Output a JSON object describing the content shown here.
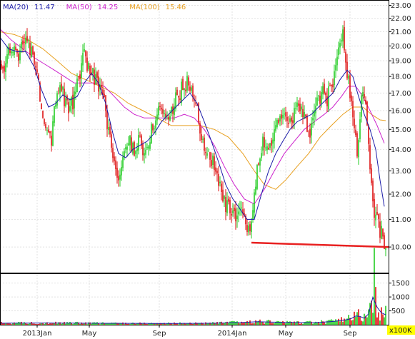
{
  "chart_data": {
    "type": "candlestick",
    "legend": [
      {
        "label": "MA(20)",
        "value": "11.47",
        "color": "#1a1aa8"
      },
      {
        "label": "MA(50)",
        "value": "14.25",
        "color": "#cc22cc"
      },
      {
        "label": "MA(100)",
        "value": "15.46",
        "color": "#e8a020"
      }
    ],
    "price_axis": {
      "scale": "log",
      "range": [
        9.2,
        23.2
      ],
      "ticks": [
        10,
        11,
        12,
        13,
        14,
        15,
        16,
        17,
        18,
        19,
        20,
        21,
        22,
        23
      ],
      "tick_labels": [
        "10.00",
        "11.00",
        "12.00",
        "13.00",
        "14.00",
        "15.00",
        "16.00",
        "17.00",
        "18.00",
        "19.00",
        "20.00",
        "21.00",
        "22.00",
        "23.00"
      ]
    },
    "volume_axis": {
      "range": [
        0,
        1800
      ],
      "ticks": [
        500,
        1000,
        1500
      ],
      "tick_labels": [
        "500",
        "1000",
        "1500"
      ],
      "unit_label": "x100K"
    },
    "x_axis": {
      "labels": [
        {
          "text": "2013Jan",
          "t": 52
        },
        {
          "text": "May",
          "t": 125
        },
        {
          "text": "Sep",
          "t": 223
        },
        {
          "text": "2014Jan",
          "t": 325
        },
        {
          "text": "May",
          "t": 400
        },
        {
          "text": "Sep",
          "t": 490
        }
      ],
      "range": [
        0,
        540
      ]
    },
    "support_line": {
      "from": [
        352,
        10.15
      ],
      "to": [
        540,
        10.0
      ],
      "color": "#e82020"
    },
    "price_path": [
      [
        0,
        18.3
      ],
      [
        8,
        18.8
      ],
      [
        14,
        19.6
      ],
      [
        20,
        19.9
      ],
      [
        26,
        19.6
      ],
      [
        32,
        20.2
      ],
      [
        38,
        20.0
      ],
      [
        44,
        19.6
      ],
      [
        50,
        19.0
      ],
      [
        55,
        17.0
      ],
      [
        60,
        16.0
      ],
      [
        66,
        15.2
      ],
      [
        72,
        14.6
      ],
      [
        78,
        16.8
      ],
      [
        84,
        17.6
      ],
      [
        90,
        16.6
      ],
      [
        96,
        16.2
      ],
      [
        102,
        16.4
      ],
      [
        106,
        17.0
      ],
      [
        110,
        17.8
      ],
      [
        114,
        18.9
      ],
      [
        118,
        19.2
      ],
      [
        124,
        18.6
      ],
      [
        130,
        18.2
      ],
      [
        136,
        17.6
      ],
      [
        142,
        17.0
      ],
      [
        148,
        16.0
      ],
      [
        154,
        14.4
      ],
      [
        160,
        13.4
      ],
      [
        166,
        12.4
      ],
      [
        170,
        13.0
      ],
      [
        176,
        14.2
      ],
      [
        182,
        14.4
      ],
      [
        188,
        14.0
      ],
      [
        194,
        14.6
      ],
      [
        200,
        14.0
      ],
      [
        206,
        13.8
      ],
      [
        212,
        15.0
      ],
      [
        218,
        15.6
      ],
      [
        224,
        16.2
      ],
      [
        230,
        15.8
      ],
      [
        236,
        15.6
      ],
      [
        242,
        16.2
      ],
      [
        248,
        16.8
      ],
      [
        254,
        17.2
      ],
      [
        260,
        17.6
      ],
      [
        266,
        17.4
      ],
      [
        272,
        16.8
      ],
      [
        278,
        15.6
      ],
      [
        284,
        14.2
      ],
      [
        290,
        13.8
      ],
      [
        296,
        13.6
      ],
      [
        302,
        13.0
      ],
      [
        308,
        12.2
      ],
      [
        314,
        11.6
      ],
      [
        320,
        11.4
      ],
      [
        326,
        11.2
      ],
      [
        332,
        10.9
      ],
      [
        338,
        11.2
      ],
      [
        344,
        10.8
      ],
      [
        350,
        10.6
      ],
      [
        354,
        11.4
      ],
      [
        358,
        12.4
      ],
      [
        362,
        13.6
      ],
      [
        368,
        14.4
      ],
      [
        374,
        13.8
      ],
      [
        380,
        14.6
      ],
      [
        386,
        14.8
      ],
      [
        392,
        16.0
      ],
      [
        398,
        15.6
      ],
      [
        404,
        15.2
      ],
      [
        410,
        15.6
      ],
      [
        416,
        16.2
      ],
      [
        422,
        16.0
      ],
      [
        428,
        15.4
      ],
      [
        434,
        15.0
      ],
      [
        440,
        15.6
      ],
      [
        446,
        16.6
      ],
      [
        452,
        17.2
      ],
      [
        458,
        16.6
      ],
      [
        464,
        17.6
      ],
      [
        470,
        18.4
      ],
      [
        476,
        20.0
      ],
      [
        480,
        20.8
      ],
      [
        484,
        18.6
      ],
      [
        488,
        17.6
      ],
      [
        492,
        16.4
      ],
      [
        496,
        15.0
      ],
      [
        500,
        13.6
      ],
      [
        504,
        15.8
      ],
      [
        508,
        17.2
      ],
      [
        512,
        16.0
      ],
      [
        516,
        14.6
      ],
      [
        520,
        12.2
      ],
      [
        524,
        11.2
      ],
      [
        528,
        10.9
      ],
      [
        532,
        10.6
      ],
      [
        536,
        10.3
      ],
      [
        540,
        10.1
      ]
    ],
    "ma20_path": [
      [
        0,
        20.6
      ],
      [
        12,
        19.8
      ],
      [
        24,
        19.6
      ],
      [
        36,
        19.6
      ],
      [
        48,
        18.6
      ],
      [
        58,
        17.2
      ],
      [
        68,
        16.2
      ],
      [
        78,
        16.4
      ],
      [
        88,
        16.9
      ],
      [
        98,
        16.6
      ],
      [
        108,
        16.8
      ],
      [
        118,
        17.6
      ],
      [
        128,
        18.2
      ],
      [
        138,
        17.6
      ],
      [
        148,
        16.4
      ],
      [
        158,
        14.8
      ],
      [
        166,
        13.8
      ],
      [
        176,
        13.6
      ],
      [
        186,
        14.0
      ],
      [
        196,
        14.2
      ],
      [
        206,
        14.4
      ],
      [
        216,
        14.8
      ],
      [
        226,
        15.4
      ],
      [
        236,
        15.8
      ],
      [
        246,
        16.2
      ],
      [
        256,
        16.6
      ],
      [
        266,
        17.0
      ],
      [
        276,
        16.4
      ],
      [
        286,
        15.4
      ],
      [
        296,
        14.4
      ],
      [
        306,
        13.4
      ],
      [
        316,
        12.4
      ],
      [
        326,
        11.8
      ],
      [
        336,
        11.4
      ],
      [
        346,
        11.0
      ],
      [
        356,
        11.0
      ],
      [
        366,
        12.0
      ],
      [
        376,
        13.0
      ],
      [
        386,
        13.8
      ],
      [
        396,
        14.4
      ],
      [
        406,
        15.0
      ],
      [
        416,
        15.4
      ],
      [
        426,
        15.6
      ],
      [
        436,
        15.8
      ],
      [
        446,
        16.2
      ],
      [
        456,
        16.6
      ],
      [
        466,
        17.0
      ],
      [
        476,
        17.8
      ],
      [
        486,
        18.4
      ],
      [
        494,
        18.0
      ],
      [
        502,
        16.8
      ],
      [
        510,
        15.8
      ],
      [
        518,
        15.0
      ],
      [
        526,
        14.0
      ],
      [
        532,
        12.6
      ],
      [
        538,
        11.5
      ]
    ],
    "ma50_path": [
      [
        0,
        21.2
      ],
      [
        16,
        20.4
      ],
      [
        32,
        19.8
      ],
      [
        48,
        19.2
      ],
      [
        62,
        18.8
      ],
      [
        76,
        18.4
      ],
      [
        90,
        18.0
      ],
      [
        104,
        17.6
      ],
      [
        118,
        17.6
      ],
      [
        132,
        17.6
      ],
      [
        146,
        17.4
      ],
      [
        160,
        16.8
      ],
      [
        174,
        16.2
      ],
      [
        188,
        15.8
      ],
      [
        202,
        15.6
      ],
      [
        216,
        15.6
      ],
      [
        230,
        15.6
      ],
      [
        244,
        15.6
      ],
      [
        258,
        15.8
      ],
      [
        272,
        15.6
      ],
      [
        286,
        15.0
      ],
      [
        300,
        14.2
      ],
      [
        314,
        13.2
      ],
      [
        328,
        12.4
      ],
      [
        342,
        11.8
      ],
      [
        356,
        11.6
      ],
      [
        370,
        12.2
      ],
      [
        384,
        13.0
      ],
      [
        398,
        13.8
      ],
      [
        412,
        14.4
      ],
      [
        426,
        15.0
      ],
      [
        440,
        15.4
      ],
      [
        454,
        15.8
      ],
      [
        466,
        16.2
      ],
      [
        478,
        16.8
      ],
      [
        488,
        17.4
      ],
      [
        498,
        17.4
      ],
      [
        508,
        16.8
      ],
      [
        518,
        16.0
      ],
      [
        528,
        15.2
      ],
      [
        538,
        14.3
      ]
    ],
    "ma100_path": [
      [
        0,
        21.0
      ],
      [
        20,
        20.8
      ],
      [
        40,
        20.4
      ],
      [
        60,
        19.8
      ],
      [
        80,
        19.0
      ],
      [
        100,
        18.2
      ],
      [
        120,
        17.8
      ],
      [
        140,
        17.4
      ],
      [
        160,
        17.0
      ],
      [
        180,
        16.4
      ],
      [
        200,
        16.0
      ],
      [
        220,
        15.6
      ],
      [
        240,
        15.2
      ],
      [
        260,
        15.2
      ],
      [
        280,
        15.2
      ],
      [
        300,
        15.0
      ],
      [
        320,
        14.6
      ],
      [
        340,
        13.8
      ],
      [
        356,
        13.0
      ],
      [
        370,
        12.4
      ],
      [
        386,
        12.2
      ],
      [
        400,
        12.6
      ],
      [
        416,
        13.2
      ],
      [
        432,
        13.8
      ],
      [
        448,
        14.6
      ],
      [
        464,
        15.2
      ],
      [
        480,
        15.8
      ],
      [
        494,
        16.2
      ],
      [
        508,
        16.2
      ],
      [
        520,
        15.8
      ],
      [
        532,
        15.5
      ],
      [
        540,
        15.46
      ]
    ],
    "volume_profile": [
      [
        0,
        60
      ],
      [
        60,
        70
      ],
      [
        120,
        60
      ],
      [
        180,
        55
      ],
      [
        240,
        50
      ],
      [
        300,
        60
      ],
      [
        340,
        90
      ],
      [
        360,
        120
      ],
      [
        400,
        90
      ],
      [
        440,
        80
      ],
      [
        470,
        140
      ],
      [
        490,
        220
      ],
      [
        500,
        380
      ],
      [
        510,
        260
      ],
      [
        520,
        550
      ],
      [
        524,
        1650
      ],
      [
        528,
        700
      ],
      [
        532,
        500
      ],
      [
        540,
        400
      ]
    ]
  }
}
